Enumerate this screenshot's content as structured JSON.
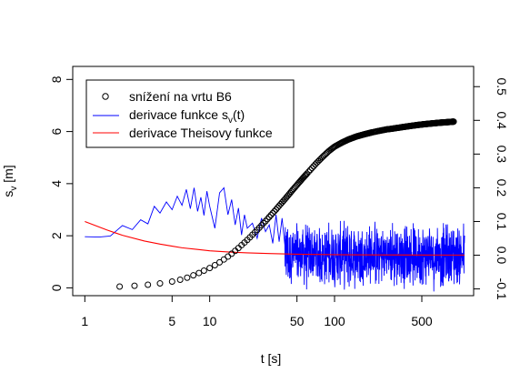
{
  "chart_data": {
    "type": "scatter",
    "x_scale": "log",
    "xlabel": "t [s]",
    "ylabel_main": "s",
    "ylabel_sub": "v",
    "ylabel_unit": " [m]",
    "xlim": [
      0.8,
      1300
    ],
    "ylim": [
      -0.3,
      8.5
    ],
    "y2lim": [
      -0.12,
      0.56
    ],
    "x_ticks": [
      {
        "value": 1,
        "label": "1"
      },
      {
        "value": 5,
        "label": "5"
      },
      {
        "value": 10,
        "label": "10"
      },
      {
        "value": 50,
        "label": "50"
      },
      {
        "value": 100,
        "label": "100"
      },
      {
        "value": 500,
        "label": "500"
      }
    ],
    "y_ticks": [
      {
        "value": 0,
        "label": "0"
      },
      {
        "value": 2,
        "label": "2"
      },
      {
        "value": 4,
        "label": "4"
      },
      {
        "value": 6,
        "label": "6"
      },
      {
        "value": 8,
        "label": "8"
      }
    ],
    "y2_ticks": [
      {
        "value": -0.1,
        "label": "-0.1"
      },
      {
        "value": 0.0,
        "label": "0.0"
      },
      {
        "value": 0.1,
        "label": "0.1"
      },
      {
        "value": 0.2,
        "label": "0.2"
      },
      {
        "value": 0.3,
        "label": "0.3"
      },
      {
        "value": 0.4,
        "label": "0.4"
      },
      {
        "value": 0.5,
        "label": "0.5"
      }
    ],
    "legend": {
      "position": "top-left",
      "entries": [
        {
          "label": "snížení na vrtu B6",
          "style": "circle",
          "color": "#000000"
        },
        {
          "label_main": "derivace funkce s",
          "label_sub": "v",
          "label_tail": "(t)",
          "style": "line",
          "color": "#0000ff"
        },
        {
          "label": "derivace Theisovy funkce",
          "style": "line",
          "color": "#ff0000"
        }
      ]
    },
    "drawdown": {
      "axis": "left",
      "color": "#000000",
      "x": [
        1.9,
        2.5,
        3.2,
        4.0,
        5.0,
        5.8,
        6.6,
        7.4,
        8.2,
        9.0,
        10,
        11,
        12,
        13,
        14,
        15,
        16,
        17,
        18,
        19,
        20,
        21,
        22,
        23,
        24,
        25,
        26,
        27,
        28,
        29,
        30,
        32,
        34,
        36,
        38,
        40,
        43,
        46,
        50,
        55,
        60,
        66,
        72,
        80,
        90,
        100,
        115,
        130,
        150,
        175,
        200,
        230,
        260,
        300,
        350,
        400,
        460,
        520,
        600,
        700,
        800,
        900
      ],
      "y": [
        0.05,
        0.08,
        0.12,
        0.17,
        0.24,
        0.31,
        0.39,
        0.48,
        0.57,
        0.66,
        0.76,
        0.87,
        0.98,
        1.09,
        1.2,
        1.31,
        1.42,
        1.53,
        1.64,
        1.74,
        1.84,
        1.94,
        2.04,
        2.13,
        2.22,
        2.31,
        2.4,
        2.48,
        2.56,
        2.64,
        2.72,
        2.87,
        3.01,
        3.15,
        3.28,
        3.4,
        3.58,
        3.75,
        3.95,
        4.18,
        4.38,
        4.6,
        4.8,
        5.02,
        5.25,
        5.42,
        5.58,
        5.7,
        5.81,
        5.9,
        5.97,
        6.03,
        6.08,
        6.12,
        6.17,
        6.21,
        6.25,
        6.28,
        6.31,
        6.34,
        6.36,
        6.38
      ]
    },
    "drawdown_derivative": {
      "axis": "right",
      "color": "#0000ff",
      "x": [
        1,
        1.3,
        1.6,
        2.0,
        2.4,
        2.8,
        3.2,
        3.6,
        4.0,
        4.5,
        5.0,
        5.5,
        6.0,
        6.5,
        7.0,
        7.5,
        8.0,
        8.5,
        9.0,
        9.5,
        10,
        11,
        12,
        13,
        14,
        15,
        16,
        17,
        18,
        19,
        20,
        22,
        24,
        26,
        28,
        30,
        32,
        34,
        36,
        38,
        40
      ],
      "y": [
        0.055,
        0.054,
        0.057,
        0.088,
        0.076,
        0.105,
        0.093,
        0.145,
        0.125,
        0.158,
        0.135,
        0.175,
        0.148,
        0.195,
        0.138,
        0.2,
        0.13,
        0.172,
        0.118,
        0.19,
        0.145,
        0.08,
        0.185,
        0.2,
        0.12,
        0.165,
        0.09,
        0.14,
        0.06,
        0.12,
        0.08,
        0.095,
        0.05,
        0.11,
        0.07,
        0.09,
        0.035,
        0.12,
        0.04,
        0.11,
        0.03
      ],
      "noise": {
        "x_from": 40,
        "x_to": 1100,
        "center": 0.0,
        "amplitude": 0.11
      }
    },
    "theis_derivative": {
      "axis": "right",
      "color": "#ff0000",
      "x": [
        1,
        1.5,
        2,
        3,
        4,
        5,
        6,
        8,
        10,
        15,
        20,
        30,
        50,
        100,
        200,
        500,
        1100
      ],
      "y": [
        0.1,
        0.075,
        0.059,
        0.042,
        0.033,
        0.027,
        0.022,
        0.017,
        0.013,
        0.009,
        0.007,
        0.005,
        0.003,
        0.0015,
        0.001,
        0.0005,
        0.0004
      ]
    }
  }
}
